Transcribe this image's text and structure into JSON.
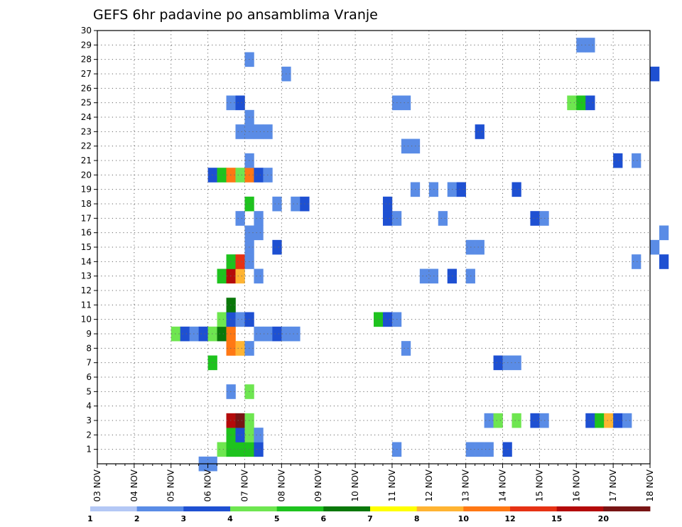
{
  "chart_data": {
    "type": "heatmap",
    "title": "GEFS 6hr padavine po ansamblima Vranje",
    "xlabel": "",
    "ylabel": "",
    "x_tick_labels": [
      "03 NOV",
      "04 NOV",
      "05 NOV",
      "06 NOV",
      "07 NOV",
      "08 NOV",
      "09 NOV",
      "10 NOV",
      "11 NOV",
      "12 NOV",
      "13 NOV",
      "14 NOV",
      "15 NOV",
      "16 NOV",
      "17 NOV",
      "18 NOV"
    ],
    "x_step_unit": "6h",
    "y_tick_labels": [
      "1",
      "2",
      "3",
      "4",
      "5",
      "6",
      "7",
      "8",
      "9",
      "10",
      "11",
      "12",
      "13",
      "14",
      "15",
      "16",
      "17",
      "18",
      "19",
      "20",
      "21",
      "22",
      "23",
      "24",
      "25",
      "26",
      "27",
      "28",
      "29",
      "30"
    ],
    "ylim": [
      0,
      30
    ],
    "legend": {
      "levels": [
        1,
        2,
        3,
        4,
        5,
        6,
        7,
        8,
        10,
        12,
        15,
        20
      ],
      "tick_labels": [
        "1",
        "2",
        "3",
        "4",
        "5",
        "6",
        "7",
        "8",
        "10",
        "12",
        "15",
        "20"
      ],
      "colors": [
        "#b4c8f5",
        "#5a8ce6",
        "#1e50d2",
        "#6ee650",
        "#1ec31e",
        "#0a780a",
        "#ffff00",
        "#ffb432",
        "#ff7814",
        "#e63214",
        "#b40a0a",
        "#781414"
      ]
    },
    "cells": [
      [
        11,
        0,
        1
      ],
      [
        12,
        0,
        1
      ],
      [
        13,
        1,
        3
      ],
      [
        14,
        1,
        4
      ],
      [
        15,
        1,
        4
      ],
      [
        16,
        1,
        4
      ],
      [
        17,
        1,
        2
      ],
      [
        44,
        1,
        2
      ],
      [
        32,
        1,
        1
      ],
      [
        40,
        1,
        1
      ],
      [
        41,
        1,
        1
      ],
      [
        42,
        1,
        1
      ],
      [
        14,
        2,
        4
      ],
      [
        15,
        2,
        2
      ],
      [
        16,
        2,
        3
      ],
      [
        17,
        2,
        1
      ],
      [
        14,
        3,
        10
      ],
      [
        15,
        3,
        11
      ],
      [
        16,
        3,
        3
      ],
      [
        42,
        3,
        1
      ],
      [
        43,
        3,
        3
      ],
      [
        45,
        3,
        3
      ],
      [
        47,
        3,
        2
      ],
      [
        48,
        3,
        1
      ],
      [
        53,
        3,
        2
      ],
      [
        54,
        3,
        4
      ],
      [
        55,
        3,
        7
      ],
      [
        56,
        3,
        2
      ],
      [
        57,
        3,
        1
      ],
      [
        14,
        5,
        1
      ],
      [
        16,
        5,
        3
      ],
      [
        12,
        7,
        4
      ],
      [
        43,
        7,
        2
      ],
      [
        44,
        7,
        1
      ],
      [
        45,
        7,
        1
      ],
      [
        14,
        8,
        8
      ],
      [
        15,
        8,
        7
      ],
      [
        16,
        8,
        1
      ],
      [
        33,
        8,
        1
      ],
      [
        8,
        9,
        3
      ],
      [
        9,
        9,
        2
      ],
      [
        10,
        9,
        1
      ],
      [
        11,
        9,
        2
      ],
      [
        12,
        9,
        3
      ],
      [
        13,
        9,
        5
      ],
      [
        14,
        9,
        8
      ],
      [
        17,
        9,
        1
      ],
      [
        18,
        9,
        1
      ],
      [
        19,
        9,
        2
      ],
      [
        20,
        9,
        1
      ],
      [
        21,
        9,
        1
      ],
      [
        13,
        10,
        3
      ],
      [
        14,
        10,
        2
      ],
      [
        15,
        10,
        1
      ],
      [
        16,
        10,
        2
      ],
      [
        30,
        10,
        4
      ],
      [
        31,
        10,
        2
      ],
      [
        32,
        10,
        1
      ],
      [
        14,
        11,
        5
      ],
      [
        13,
        13,
        4
      ],
      [
        14,
        13,
        10
      ],
      [
        15,
        13,
        7
      ],
      [
        17,
        13,
        1
      ],
      [
        35,
        13,
        1
      ],
      [
        36,
        13,
        1
      ],
      [
        38,
        13,
        2
      ],
      [
        40,
        13,
        1
      ],
      [
        14,
        14,
        4
      ],
      [
        15,
        14,
        9
      ],
      [
        16,
        14,
        1
      ],
      [
        58,
        14,
        1
      ],
      [
        61,
        14,
        2
      ],
      [
        16,
        15,
        1
      ],
      [
        19,
        15,
        2
      ],
      [
        40,
        15,
        1
      ],
      [
        41,
        15,
        1
      ],
      [
        60,
        15,
        1
      ],
      [
        16,
        16,
        1
      ],
      [
        17,
        16,
        1
      ],
      [
        61,
        16,
        1
      ],
      [
        17,
        17,
        1
      ],
      [
        15,
        17,
        1
      ],
      [
        31,
        17,
        2
      ],
      [
        32,
        17,
        1
      ],
      [
        37,
        17,
        1
      ],
      [
        47,
        17,
        2
      ],
      [
        48,
        17,
        1
      ],
      [
        16,
        18,
        4
      ],
      [
        19,
        18,
        1
      ],
      [
        21,
        18,
        1
      ],
      [
        22,
        18,
        2
      ],
      [
        31,
        18,
        2
      ],
      [
        34,
        19,
        1
      ],
      [
        36,
        19,
        1
      ],
      [
        38,
        19,
        1
      ],
      [
        39,
        19,
        2
      ],
      [
        45,
        19,
        2
      ],
      [
        12,
        20,
        2
      ],
      [
        13,
        20,
        4
      ],
      [
        14,
        20,
        8
      ],
      [
        15,
        20,
        3
      ],
      [
        16,
        20,
        8
      ],
      [
        17,
        20,
        2
      ],
      [
        18,
        20,
        1
      ],
      [
        16,
        21,
        1
      ],
      [
        56,
        21,
        2
      ],
      [
        58,
        21,
        1
      ],
      [
        33,
        22,
        1
      ],
      [
        34,
        22,
        1
      ],
      [
        15,
        23,
        1
      ],
      [
        16,
        23,
        1
      ],
      [
        17,
        23,
        1
      ],
      [
        18,
        23,
        1
      ],
      [
        41,
        23,
        2
      ],
      [
        16,
        24,
        1
      ],
      [
        14,
        25,
        1
      ],
      [
        15,
        25,
        2
      ],
      [
        32,
        25,
        1
      ],
      [
        33,
        25,
        1
      ],
      [
        51,
        25,
        3
      ],
      [
        52,
        25,
        4
      ],
      [
        53,
        25,
        2
      ],
      [
        60,
        27,
        2
      ],
      [
        20,
        27,
        1
      ],
      [
        16,
        28,
        1
      ],
      [
        52,
        29,
        1
      ],
      [
        53,
        29,
        1
      ]
    ]
  }
}
